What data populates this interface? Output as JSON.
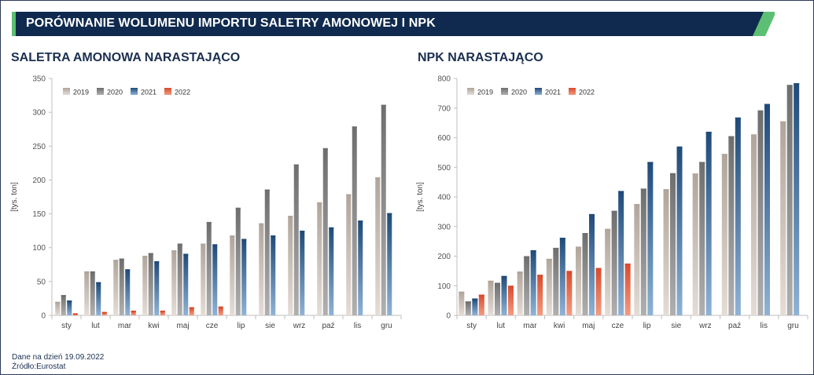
{
  "header": {
    "title": "PORÓWNANIE WOLUMENU IMPORTU SALETRY AMONOWEJ I NPK"
  },
  "footer": {
    "date_note": "Dane na dzień 19.09.2022",
    "source_note": "Źródło:Eurostat"
  },
  "colors": {
    "header_bg": "#0f2a4e",
    "header_accent": "#5cbf73",
    "title_text": "#1b2f50",
    "series_2019": "#c9bfb6",
    "series_2020": "#8c8c8c",
    "series_2021": "#2f5f8f",
    "series_2022": "#e8603f"
  },
  "chart_data": [
    {
      "type": "bar",
      "title": "SALETRA AMONOWA NARASTAJĄCO",
      "xlabel": "",
      "ylabel": "[tys. ton]",
      "ylim": [
        0,
        350
      ],
      "yticks": [
        "0",
        "50",
        "100",
        "150",
        "200",
        "250",
        "300",
        "350"
      ],
      "grid": false,
      "legend_position": "top-left",
      "categories": [
        "sty",
        "lut",
        "mar",
        "kwi",
        "maj",
        "cze",
        "lip",
        "sie",
        "wrz",
        "paź",
        "lis",
        "gru"
      ],
      "series": [
        {
          "name": "2019",
          "values": [
            20,
            65,
            82,
            88,
            96,
            106,
            118,
            136,
            147,
            167,
            179,
            204
          ]
        },
        {
          "name": "2020",
          "values": [
            30,
            65,
            84,
            92,
            106,
            138,
            159,
            186,
            223,
            247,
            279,
            311
          ]
        },
        {
          "name": "2021",
          "values": [
            22,
            49,
            68,
            80,
            91,
            105,
            113,
            118,
            125,
            130,
            140,
            151
          ]
        },
        {
          "name": "2022",
          "values": [
            3,
            5,
            7,
            7,
            12,
            13,
            null,
            null,
            null,
            null,
            null,
            null
          ]
        }
      ]
    },
    {
      "type": "bar",
      "title": "NPK NARASTAJĄCO",
      "xlabel": "",
      "ylabel": "[tys. ton]",
      "ylim": [
        0,
        800
      ],
      "yticks": [
        "0",
        "100",
        "200",
        "300",
        "400",
        "500",
        "600",
        "700",
        "800"
      ],
      "grid": false,
      "legend_position": "top-left",
      "categories": [
        "sty",
        "lut",
        "mar",
        "kwi",
        "maj",
        "cze",
        "lip",
        "sie",
        "wrz",
        "paź",
        "lis",
        "gru"
      ],
      "series": [
        {
          "name": "2019",
          "values": [
            80,
            117,
            148,
            191,
            232,
            292,
            376,
            426,
            479,
            545,
            611,
            655
          ]
        },
        {
          "name": "2020",
          "values": [
            47,
            110,
            200,
            228,
            278,
            353,
            428,
            480,
            518,
            605,
            692,
            778
          ]
        },
        {
          "name": "2021",
          "values": [
            57,
            133,
            220,
            262,
            342,
            420,
            518,
            570,
            620,
            668,
            714,
            784
          ]
        },
        {
          "name": "2022",
          "values": [
            70,
            100,
            137,
            150,
            160,
            175,
            null,
            null,
            null,
            null,
            null,
            null
          ]
        }
      ]
    }
  ]
}
